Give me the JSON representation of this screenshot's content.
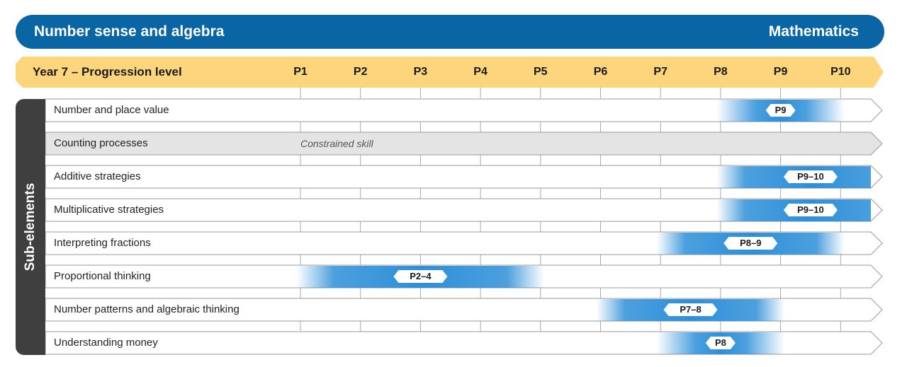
{
  "header": {
    "title": "Number sense and algebra",
    "subject": "Mathematics"
  },
  "level_bar": {
    "label": "Year 7 – Progression level",
    "levels": [
      "P1",
      "P2",
      "P3",
      "P4",
      "P5",
      "P6",
      "P7",
      "P8",
      "P9",
      "P10"
    ]
  },
  "sidebar_label": "Sub-elements",
  "constrained_text": "Constrained skill",
  "colors": {
    "header": "#0a65a5",
    "level_bar": "#fcd57d",
    "sidebar": "#3f3f40",
    "gradient": "#2d8fd8",
    "constrained_row": "#e4e4e5"
  },
  "chart_data": {
    "type": "table",
    "rows": [
      {
        "name": "Number and place value",
        "range": [
          9,
          9
        ],
        "badge": "P9"
      },
      {
        "name": "Counting processes",
        "constrained": true
      },
      {
        "name": "Additive strategies",
        "range": [
          9,
          10
        ],
        "badge": "P9–10"
      },
      {
        "name": "Multiplicative strategies",
        "range": [
          9,
          10
        ],
        "badge": "P9–10"
      },
      {
        "name": "Interpreting fractions",
        "range": [
          8,
          9
        ],
        "badge": "P8–9"
      },
      {
        "name": "Proportional thinking",
        "range": [
          2,
          4
        ],
        "badge": "P2–4"
      },
      {
        "name": "Number patterns and algebraic thinking",
        "range": [
          7,
          8
        ],
        "badge": "P7–8"
      },
      {
        "name": "Understanding money",
        "range": [
          8,
          8
        ],
        "badge": "P8"
      }
    ]
  }
}
